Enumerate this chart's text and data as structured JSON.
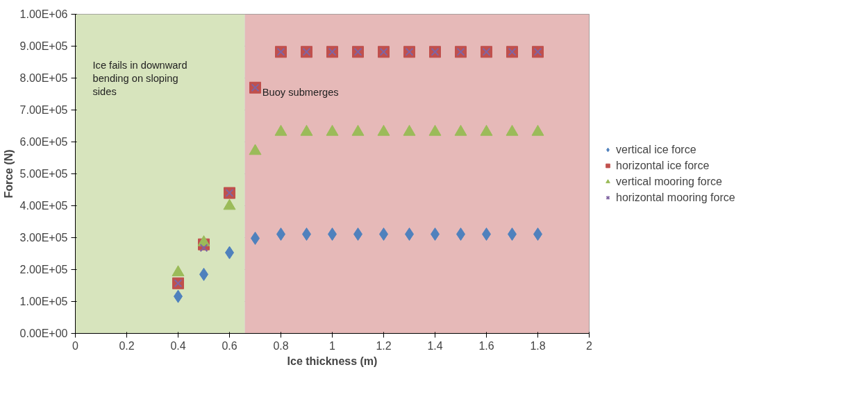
{
  "chart_data": {
    "type": "scatter",
    "xlabel": "Ice thickness (m)",
    "ylabel": "Force (N)",
    "xlim": [
      0,
      2
    ],
    "xticks": [
      0,
      0.2,
      0.4,
      0.6,
      0.8,
      1,
      1.2,
      1.4,
      1.6,
      1.8,
      2
    ],
    "ylim": [
      0,
      1000000
    ],
    "yticks": [
      {
        "value": 0,
        "label": "0.00E+00"
      },
      {
        "value": 100000,
        "label": "1.00E+05"
      },
      {
        "value": 200000,
        "label": "2.00E+05"
      },
      {
        "value": 300000,
        "label": "3.00E+05"
      },
      {
        "value": 400000,
        "label": "4.00E+05"
      },
      {
        "value": 500000,
        "label": "5.00E+05"
      },
      {
        "value": 600000,
        "label": "6.00E+05"
      },
      {
        "value": 700000,
        "label": "7.00E+05"
      },
      {
        "value": 800000,
        "label": "8.00E+05"
      },
      {
        "value": 900000,
        "label": "9.00E+05"
      },
      {
        "value": 1000000,
        "label": "1.00E+06"
      }
    ],
    "grid": "y",
    "legend": "right",
    "x": [
      0.4,
      0.5,
      0.6,
      0.7,
      0.8,
      0.9,
      1.0,
      1.1,
      1.2,
      1.3,
      1.4,
      1.5,
      1.6,
      1.7,
      1.8
    ],
    "bands": [
      {
        "axis": "x",
        "from": 0,
        "to": 0.66,
        "label": "Ice fails in downward bending on sloping sides",
        "color": "#d7e4bd"
      },
      {
        "axis": "x",
        "from": 0.66,
        "to": 2,
        "label": "Buoy submerges",
        "color": "#e6b9b8"
      }
    ],
    "series": [
      {
        "name": "vertical ice force",
        "color": "#4f81bd",
        "marker": "diamond",
        "values": [
          116000,
          185000,
          253000,
          298000,
          311000,
          311000,
          311000,
          311000,
          311000,
          311000,
          311000,
          311000,
          311000,
          311000,
          311000
        ]
      },
      {
        "name": "horizontal ice force",
        "color": "#c0504d",
        "marker": "square",
        "values": [
          157000,
          279000,
          440000,
          770000,
          882000,
          882000,
          882000,
          882000,
          882000,
          882000,
          882000,
          882000,
          882000,
          882000,
          882000
        ]
      },
      {
        "name": "vertical mooring force",
        "color": "#9bbb59",
        "marker": "triangle",
        "values": [
          191000,
          285000,
          399000,
          571000,
          631000,
          631000,
          631000,
          631000,
          631000,
          631000,
          631000,
          631000,
          631000,
          631000,
          631000
        ]
      },
      {
        "name": "horizontal mooring force",
        "color": "#8064a2",
        "marker": "cross",
        "values": [
          157000,
          268000,
          440000,
          770000,
          882000,
          882000,
          882000,
          882000,
          882000,
          882000,
          882000,
          882000,
          882000,
          882000,
          882000
        ]
      }
    ]
  }
}
